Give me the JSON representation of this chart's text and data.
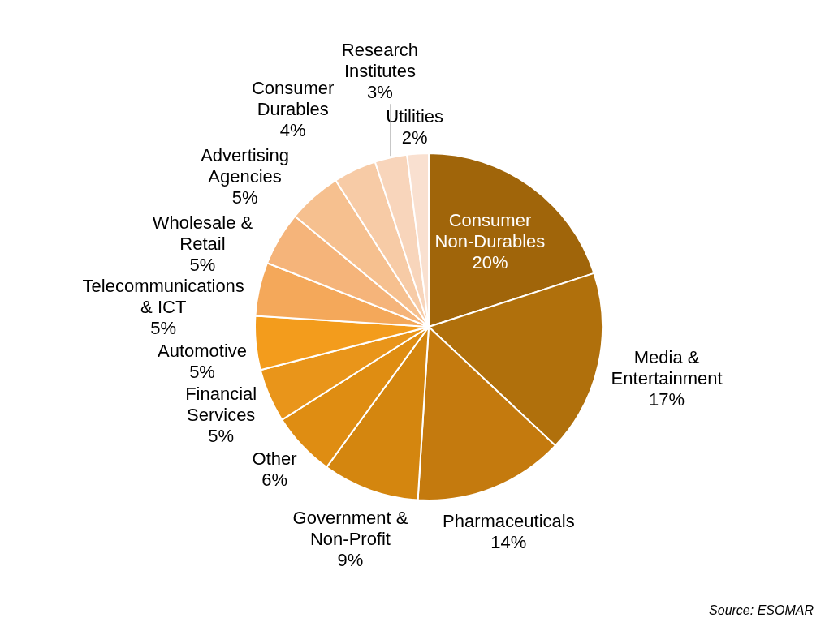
{
  "chart_data": {
    "type": "pie",
    "categories": [
      "Consumer Non-Durables",
      "Media & Entertainment",
      "Pharmaceuticals",
      "Government & Non-Profit",
      "Other",
      "Financial Services",
      "Automotive",
      "Telecommunications & ICT",
      "Wholesale & Retail",
      "Advertising Agencies",
      "Consumer Durables",
      "Research Institutes",
      "Utilities"
    ],
    "values": [
      20,
      17,
      14,
      9,
      6,
      5,
      5,
      5,
      5,
      5,
      4,
      3,
      2
    ],
    "colors": [
      "#a0650a",
      "#b0700c",
      "#c47a0e",
      "#d4860f",
      "#df8d12",
      "#e9951a",
      "#f39c1c",
      "#f4a85a",
      "#f5b47a",
      "#f6c08f",
      "#f7cba6",
      "#f8d5bb",
      "#f9e0d0"
    ],
    "value_labels": [
      "20%",
      "17%",
      "14%",
      "9%",
      "6%",
      "5%",
      "5%",
      "5%",
      "5%",
      "5%",
      "4%",
      "3%",
      "2%"
    ],
    "legend": false,
    "annotations": [
      "Source: ESOMAR"
    ]
  }
}
